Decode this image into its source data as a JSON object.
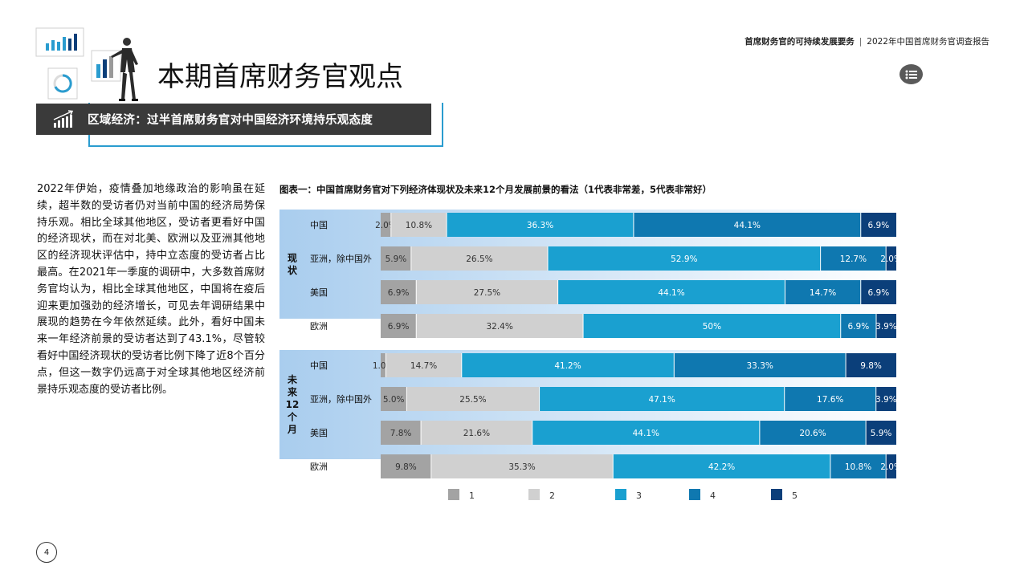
{
  "header": {
    "report_section": "首席财务官的可持续发展要务",
    "separator": "|",
    "report_name": "2022年中国首席财务官调查报告"
  },
  "page_title": "本期首席财务官观点",
  "banner": {
    "text": "区域经济：过半首席财务官对中国经济环境持乐观态度"
  },
  "body_text": "2022年伊始，疫情叠加地缘政治的影响虽在延续，超半数的受访者仍对当前中国的经济局势保持乐观。相比全球其他地区，受访者更看好中国的经济现状，而在对北美、欧洲以及亚洲其他地区的经济现状评估中，持中立态度的受访者占比最高。在2021年一季度的调研中，大多数首席财务官均认为，相比全球其他地区，中国将在疫后迎来更加强劲的经济增长，可见去年调研结果中展现的趋势在今年依然延续。此外，看好中国未来一年经济前景的受访者达到了43.1%，尽管较看好中国经济现状的受访者比例下降了近8个百分点，但这一数字仍远高于对全球其他地区经济前景持乐观态度的受访者比例。",
  "page_number": "4",
  "colors": {
    "banner_bg": "#3a3a3a",
    "accent": "#2a9ccf",
    "group_bg_light": "#e9f3fb",
    "group_bg_dark": "#a9cdee"
  },
  "icons": {
    "menu": "list-icon",
    "banner": "bar-chart-rising-icon"
  },
  "chart_data": {
    "type": "bar",
    "orientation": "horizontal-stacked-100",
    "title": "图表一：中国首席财务官对下列经济体现状及未来12个月发展前景的看法（1代表非常差，5代表非常好）",
    "series_names": [
      "1",
      "2",
      "3",
      "4",
      "5"
    ],
    "series_colors": [
      "#a3a3a3",
      "#d0d0d0",
      "#1aa0d0",
      "#0f78b0",
      "#0b3f7a"
    ],
    "legend_position": "bottom",
    "groups": [
      {
        "label": "现状",
        "rows": [
          {
            "category": "中国",
            "values": [
              2.0,
              10.8,
              36.3,
              44.1,
              6.9
            ],
            "labels": [
              "2.0%",
              "10.8%",
              "36.3%",
              "44.1%",
              "6.9%"
            ]
          },
          {
            "category": "亚洲，除中国外",
            "values": [
              5.9,
              26.5,
              52.9,
              12.7,
              2.0
            ],
            "labels": [
              "5.9%",
              "26.5%",
              "52.9%",
              "12.7%",
              "2.0%"
            ]
          },
          {
            "category": "美国",
            "values": [
              6.9,
              27.5,
              44.1,
              14.7,
              6.9
            ],
            "labels": [
              "6.9%",
              "27.5%",
              "44.1%",
              "14.7%",
              "6.9%"
            ]
          },
          {
            "category": "欧洲",
            "values": [
              6.9,
              32.4,
              50.0,
              6.9,
              3.9
            ],
            "labels": [
              "6.9%",
              "32.4%",
              "50%",
              "6.9%",
              "3.9%"
            ]
          }
        ]
      },
      {
        "label": "未来12个月",
        "rows": [
          {
            "category": "中国",
            "values": [
              1.0,
              14.7,
              41.2,
              33.3,
              9.8
            ],
            "labels": [
              "1.0%",
              "14.7%",
              "41.2%",
              "33.3%",
              "9.8%"
            ]
          },
          {
            "category": "亚洲，除中国外",
            "values": [
              5.0,
              25.5,
              47.1,
              17.6,
              3.9
            ],
            "labels": [
              "5.0%",
              "25.5%",
              "47.1%",
              "17.6%",
              "3.9%"
            ]
          },
          {
            "category": "美国",
            "values": [
              7.8,
              21.6,
              44.1,
              20.6,
              5.9
            ],
            "labels": [
              "7.8%",
              "21.6%",
              "44.1%",
              "20.6%",
              "5.9%"
            ]
          },
          {
            "category": "欧洲",
            "values": [
              9.8,
              35.3,
              42.2,
              10.8,
              2.0
            ],
            "labels": [
              "9.8%",
              "35.3%",
              "42.2%",
              "10.8%",
              "2.0%"
            ]
          }
        ]
      }
    ]
  }
}
